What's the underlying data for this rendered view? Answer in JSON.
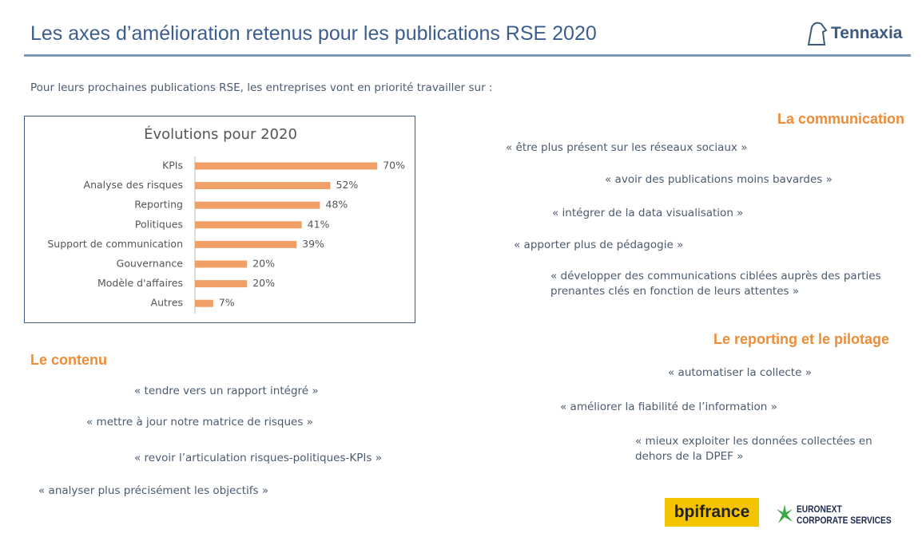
{
  "header": {
    "title": "Les axes d’amélioration retenus pour les publications RSE 2020",
    "logo": "Tennaxia"
  },
  "intro": "Pour leurs prochaines publications RSE, les entreprises vont en priorité travailler sur :",
  "chart_data": {
    "type": "bar",
    "orientation": "horizontal",
    "title": "Évolutions pour 2020",
    "categories": [
      "KPIs",
      "Analyse des risques",
      "Reporting",
      "Politiques",
      "Support de communication",
      "Gouvernance",
      "Modèle d'affaires",
      "Autres"
    ],
    "values": [
      70,
      52,
      48,
      41,
      39,
      20,
      20,
      7
    ],
    "value_labels": [
      "70%",
      "52%",
      "48%",
      "41%",
      "39%",
      "20%",
      "20%",
      "7%"
    ],
    "color": "#f0a067"
  },
  "sections": [
    {
      "title": "La communication",
      "quotes": [
        "« être plus présent sur les réseaux sociaux »",
        "« avoir des publications moins bavardes »",
        "« intégrer de la data visualisation »",
        "« apporter plus de pédagogie »",
        "« développer des communications ciblées auprès des parties prenantes clés en fonction de leurs attentes »"
      ]
    },
    {
      "title": "Le reporting et le pilotage",
      "quotes": [
        "« automatiser la collecte »",
        "« améliorer la fiabilité de l’information »",
        "« mieux exploiter les données collectées en dehors de la DPEF »"
      ]
    },
    {
      "title": "Le contenu",
      "quotes": [
        "« tendre vers un rapport intégré »",
        "« mettre à jour notre matrice de risques »",
        "« revoir l’articulation risques-politiques-KPIs »",
        "« analyser plus précisément les objectifs »"
      ]
    }
  ],
  "footer_logos": [
    "bpifrance",
    "EURONEXT",
    "CORPORATE SERVICES"
  ]
}
